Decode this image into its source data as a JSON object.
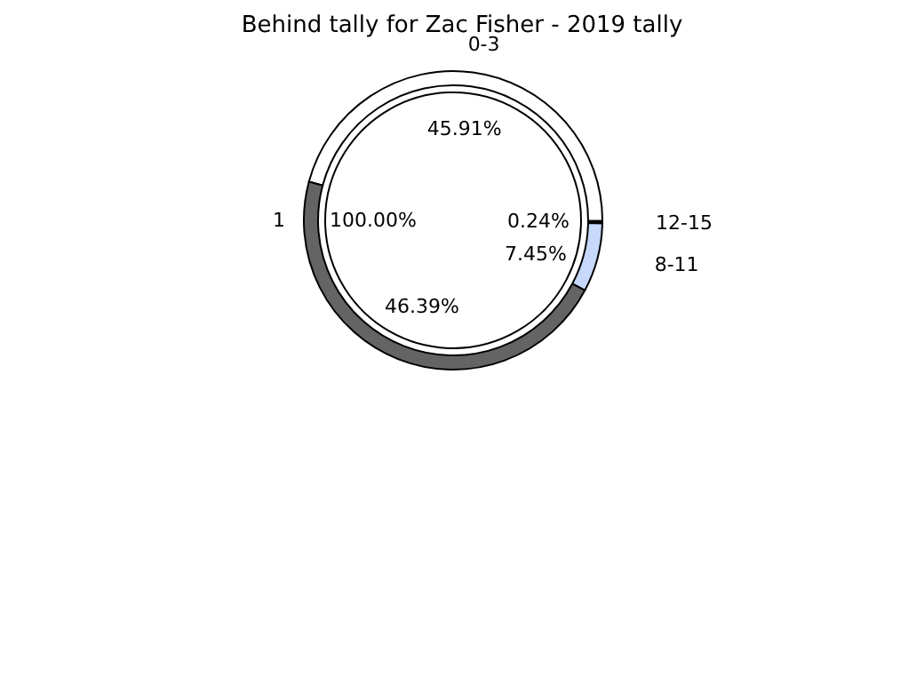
{
  "chart_data": [
    {
      "type": "pie",
      "categories": [
        "1"
      ],
      "values": [
        100
      ],
      "colors": [
        "#ffffff"
      ],
      "value_labels": [
        "100.00%"
      ]
    },
    {
      "type": "donut",
      "title": "Behind tally for Zac Fisher - 2019 tally",
      "categories": [
        "0-3",
        "12-15",
        "8-11",
        null
      ],
      "values": [
        45.91,
        0.24,
        7.45,
        46.39
      ],
      "colors": [
        "#ffffff",
        "#222222",
        "#c6d9fb",
        "#646464"
      ],
      "value_labels": [
        "45.91%",
        "0.24%",
        "7.45%",
        "46.39%"
      ]
    }
  ]
}
